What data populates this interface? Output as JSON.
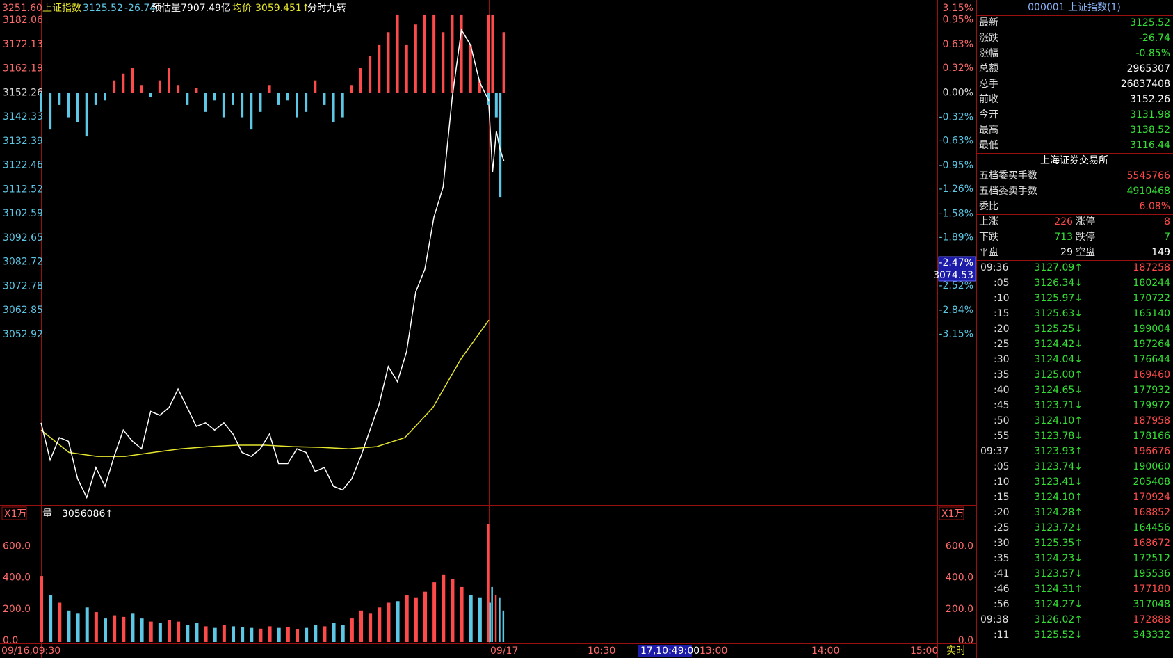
{
  "header": {
    "top_price": "3251.60",
    "index_name": "上证指数",
    "price": "3125.52",
    "change": "-26.74",
    "est_volume": "预估量7907.49亿",
    "avg_label": "均价",
    "avg_value": "3059.451↑",
    "indicator": "分时九转",
    "top_pct": "3.15%"
  },
  "chart_data": {
    "type": "line",
    "ylim": [
      2982.8,
      3190.4
    ],
    "yticks": [
      3182.06,
      3172.13,
      3162.19,
      3152.26,
      3142.33,
      3132.39,
      3122.46,
      3112.52,
      3102.59,
      3092.65,
      3082.72,
      3072.78,
      3062.85,
      3052.92
    ],
    "y2lim": [
      -5.38,
      1.21
    ],
    "y2ticks": [
      {
        "value": 0.95,
        "label": "0.95%"
      },
      {
        "value": 0.63,
        "label": "0.63%"
      },
      {
        "value": 0.32,
        "label": "0.32%"
      },
      {
        "value": 0,
        "label": "0.00%"
      },
      {
        "value": -0.32,
        "label": "-0.32%"
      },
      {
        "value": -0.63,
        "label": "-0.63%"
      },
      {
        "value": -0.95,
        "label": "-0.95%"
      },
      {
        "value": -1.26,
        "label": "-1.26%"
      },
      {
        "value": -1.58,
        "label": "-1.58%"
      },
      {
        "value": -1.89,
        "label": "-1.89%"
      },
      {
        "value": -2.52,
        "label": "-2.52%"
      },
      {
        "value": -2.84,
        "label": "-2.84%"
      },
      {
        "value": -3.15,
        "label": "-3.15%"
      }
    ],
    "colors": {
      "price": "#ffffff",
      "avg": "#e6e62e",
      "up": "#ff4a4a",
      "down": "#5cc8e6"
    },
    "price": {
      "day1": [
        3016.6,
        3001.3,
        3010.5,
        3009.0,
        2993.6,
        2985.9,
        2998.2,
        2990.5,
        3002.8,
        3013.6,
        3009.0,
        3005.9,
        3021.3,
        3019.7,
        3022.8,
        3030.5,
        3022.8,
        3015.1,
        3016.6,
        3013.6,
        3016.6,
        3012.0,
        3004.4,
        3002.8,
        3005.9,
        3012.0,
        2999.8,
        2999.8,
        3005.9,
        3004.4,
        2996.6,
        2998.2,
        2990.5,
        2989.0,
        2993.6,
        3002.8,
        3013.6,
        3024.3,
        3039.7,
        3033.5,
        3045.8,
        3070.4,
        3079.7,
        3101.2,
        3113.5,
        3150.4,
        3178.1,
        3171.9,
        3156.6,
        3148.9
      ],
      "day2": [
        3147.3,
        3119.7,
        3136.6,
        3128.9,
        3124.3
      ]
    },
    "avg": [
      3013.6,
      3004.4,
      3002.8,
      3002.8,
      3004.4,
      3005.9,
      3006.8,
      3007.4,
      3007.4,
      3006.8,
      3006.5,
      3005.9,
      3006.8,
      3010.5,
      3022.8,
      3042.8,
      3058.8
    ],
    "breadth": {
      "day1": [
        -0.25,
        -0.48,
        -0.16,
        -0.32,
        -0.38,
        -0.57,
        -0.16,
        -0.1,
        0.16,
        0.25,
        0.32,
        0.1,
        -0.06,
        0.16,
        0.32,
        0.1,
        -0.16,
        0.06,
        -0.25,
        -0.1,
        -0.32,
        -0.16,
        -0.32,
        -0.48,
        -0.25,
        0.1,
        -0.16,
        -0.1,
        -0.32,
        -0.25,
        0.16,
        -0.16,
        -0.38,
        -0.32,
        0.1,
        0.32,
        0.48,
        0.63,
        0.79,
        1.02,
        0.63,
        0.89,
        1.02,
        1.02,
        0.79,
        1.02,
        1.02,
        0.63,
        0.16,
        -0.16
      ],
      "day2": [
        1.02,
        1.02,
        -0.32,
        -1.36,
        0.79
      ]
    },
    "cursor": {
      "pct": "-2.47%",
      "price": "3074.53"
    },
    "volume": {
      "unit": "X1万",
      "label": "量",
      "total": "3056086↑",
      "ylim": [
        0,
        863
      ],
      "yticks": [
        {
          "value": 600,
          "label": "600.0"
        },
        {
          "value": 400,
          "label": "400.0"
        },
        {
          "value": 200,
          "label": "200.0"
        },
        {
          "value": 0,
          "label": "0.0"
        }
      ],
      "day1": [
        420,
        300,
        250,
        200,
        180,
        220,
        190,
        150,
        170,
        160,
        180,
        150,
        130,
        120,
        140,
        130,
        110,
        120,
        100,
        90,
        110,
        100,
        95,
        90,
        85,
        100,
        90,
        95,
        80,
        90,
        110,
        100,
        120,
        110,
        150,
        200,
        180,
        220,
        250,
        260,
        300,
        280,
        320,
        380,
        430,
        400,
        350,
        300,
        280,
        250
      ],
      "day2": [
        750,
        350,
        300,
        280,
        200
      ]
    },
    "x_labels": [
      "09/16,09:30",
      "09/17",
      "10:30",
      "17,10:49:00",
      "13:00",
      "14:00",
      "15:00",
      "实时"
    ]
  },
  "panel": {
    "title": "000001 上证指数(1)",
    "quote": [
      {
        "label": "最新",
        "value": "3125.52",
        "color": "#33e033"
      },
      {
        "label": "涨跌",
        "value": "-26.74",
        "color": "#33e033"
      },
      {
        "label": "涨幅",
        "value": "-0.85%",
        "color": "#33e033"
      },
      {
        "label": "总额",
        "value": "2965307",
        "color": "#ffffff"
      },
      {
        "label": "总手",
        "value": "26837408",
        "color": "#ffffff"
      },
      {
        "label": "前收",
        "value": "3152.26",
        "color": "#ffffff"
      },
      {
        "label": "今开",
        "value": "3131.98",
        "color": "#33e033"
      },
      {
        "label": "最高",
        "value": "3138.52",
        "color": "#33e033"
      },
      {
        "label": "最低",
        "value": "3116.44",
        "color": "#33e033"
      }
    ],
    "exchange": "上海证券交易所",
    "orders": [
      {
        "label": "五档委买手数",
        "value": "5545766",
        "color": "#ff4a4a"
      },
      {
        "label": "五档委卖手数",
        "value": "4910468",
        "color": "#33e033"
      },
      {
        "label": "委比",
        "value": "6.08%",
        "color": "#ff4a4a"
      }
    ],
    "stats": [
      [
        "上涨",
        "226",
        "涨停",
        "8"
      ],
      [
        "下跌",
        "713",
        "跌停",
        "7"
      ],
      [
        "平盘",
        "29",
        "空盘",
        "149"
      ]
    ],
    "ticks": [
      [
        "09:36",
        "3127.09↑",
        "187258"
      ],
      [
        ":05",
        "3126.34↓",
        "180244"
      ],
      [
        ":10",
        "3125.97↓",
        "170722"
      ],
      [
        ":15",
        "3125.63↓",
        "165140"
      ],
      [
        ":20",
        "3125.25↓",
        "199004"
      ],
      [
        ":25",
        "3124.42↓",
        "197264"
      ],
      [
        ":30",
        "3124.04↓",
        "176644"
      ],
      [
        ":35",
        "3125.00↑",
        "169460"
      ],
      [
        ":40",
        "3124.65↓",
        "177932"
      ],
      [
        ":45",
        "3123.71↓",
        "179972"
      ],
      [
        ":50",
        "3124.10↑",
        "187958"
      ],
      [
        ":55",
        "3123.78↓",
        "178166"
      ],
      [
        "09:37",
        "3123.93↑",
        "196676"
      ],
      [
        ":05",
        "3123.74↓",
        "190060"
      ],
      [
        ":10",
        "3123.41↓",
        "205408"
      ],
      [
        ":15",
        "3124.10↑",
        "170924"
      ],
      [
        ":20",
        "3124.28↑",
        "168852"
      ],
      [
        ":25",
        "3123.72↓",
        "164456"
      ],
      [
        ":30",
        "3125.35↑",
        "168672"
      ],
      [
        ":35",
        "3124.23↓",
        "172512"
      ],
      [
        ":41",
        "3123.57↓",
        "195536"
      ],
      [
        ":46",
        "3124.31↑",
        "177180"
      ],
      [
        ":56",
        "3124.27↓",
        "317048"
      ],
      [
        "09:38",
        "3126.02↑",
        "172888"
      ],
      [
        ":11",
        "3125.52↓",
        "343332"
      ]
    ]
  }
}
